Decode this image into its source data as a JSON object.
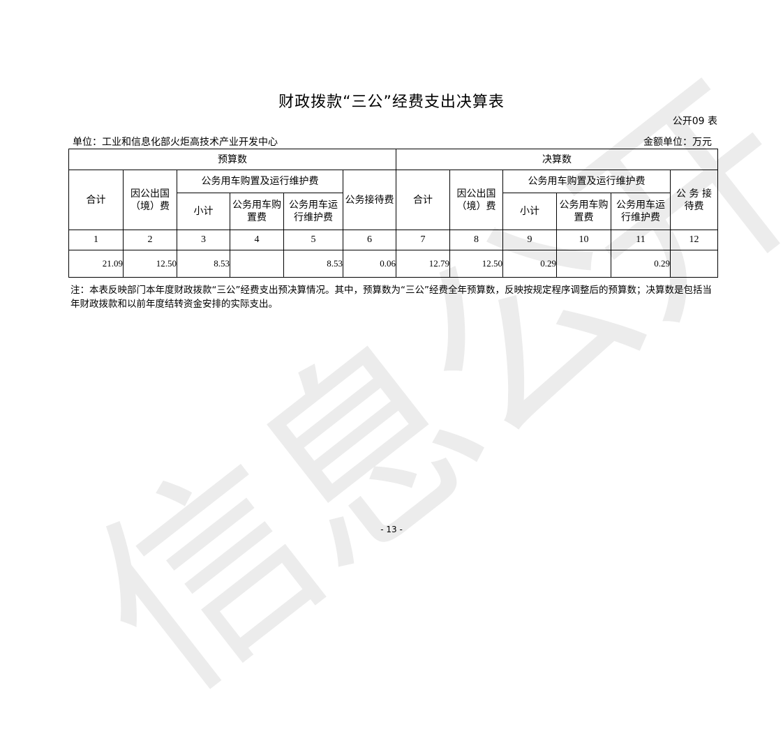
{
  "watermark": "信息公开",
  "title": "财政拨款“三公”经费支出决算表",
  "table_tag": "公开09 表",
  "unit_label": "单位：工业和信息化部火炬高技术产业开发中心",
  "money_unit": "金额单位：万元",
  "groups": {
    "budget": "预算数",
    "final": "决算数"
  },
  "headers": {
    "total": "合计",
    "abroad": "因公出国（境）费",
    "vehicle": "公务用车购置及运行维护费",
    "subtotal": "小计",
    "purchase": "公务用车购置费",
    "maintenance": "公务用车运行维护费",
    "reception": "公务接待费",
    "reception_final": "公 务 接待费"
  },
  "column_numbers": [
    "1",
    "2",
    "3",
    "4",
    "5",
    "6",
    "7",
    "8",
    "9",
    "10",
    "11",
    "12"
  ],
  "values": [
    "21.09",
    "12.50",
    "8.53",
    "",
    "8.53",
    "0.06",
    "12.79",
    "12.50",
    "0.29",
    "",
    "0.29",
    ""
  ],
  "note": "注：本表反映部门本年度财政拨款“三公”经费支出预决算情况。其中，预算数为“三公”经费全年预算数，反映按规定程序调整后的预算数；决算数是包括当年财政拨款和以前年度结转资金安排的实际支出。",
  "page_number": "- 13 -"
}
